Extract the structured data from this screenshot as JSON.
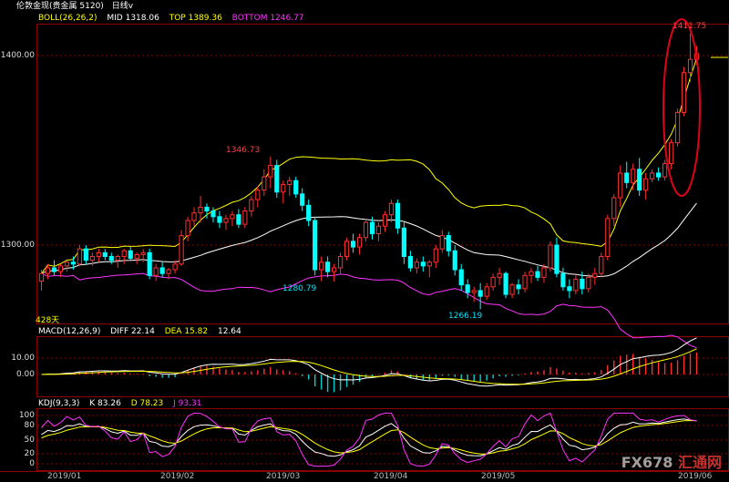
{
  "header": {
    "instrument": "伦敦金现",
    "market": "(贵金属 5120)",
    "period": "日线",
    "period_arrow": "v"
  },
  "boll": {
    "label": "BOLL(26,26,2)",
    "mid": "MID 1318.06",
    "top": "TOP 1389.36",
    "bottom": "BOTTOM 1246.77",
    "colors": {
      "label": "#ffff00",
      "mid": "#ffffff",
      "top": "#ffff00",
      "bottom": "#ff33ff"
    }
  },
  "macd": {
    "label": "MACD(12,26,9)",
    "diff": "DIFF 22.14",
    "dea": "DEA 15.82",
    "value": "12.64",
    "ticks": [
      "10.00",
      "0.00"
    ]
  },
  "kdj": {
    "label": "KDJ(9,3,3)",
    "k": "K 83.26",
    "d": "D 78.23",
    "j": "J 93.31",
    "ticks": [
      "100",
      "80",
      "50",
      "20",
      "0"
    ]
  },
  "price_axis": {
    "ticks": [
      "1400.00",
      "1300.00"
    ]
  },
  "annotations": {
    "max_recent": "1411.75",
    "feb_high": "1346.73",
    "mar_low": "1280.79",
    "apr_low": "1266.19",
    "days": "428天"
  },
  "x_axis": [
    "2019/01",
    "2019/02",
    "2019/03",
    "2019/04",
    "2019/05",
    "2019/06"
  ],
  "watermark": {
    "brand": "FX678",
    "brand_cn": "汇通网"
  },
  "chart_data": {
    "type": "candlestick",
    "up_color": "#ff3030",
    "down_color": "#00ffff",
    "ohlc": [
      [
        1281,
        1287,
        1276,
        1285
      ],
      [
        1285,
        1290,
        1282,
        1288
      ],
      [
        1288,
        1292,
        1284,
        1286
      ],
      [
        1286,
        1290,
        1283,
        1289
      ],
      [
        1289,
        1292,
        1286,
        1291
      ],
      [
        1291,
        1294,
        1287,
        1290
      ],
      [
        1290,
        1300,
        1289,
        1298
      ],
      [
        1298,
        1300,
        1290,
        1292
      ],
      [
        1292,
        1296,
        1289,
        1294
      ],
      [
        1294,
        1298,
        1291,
        1296
      ],
      [
        1296,
        1298,
        1292,
        1294
      ],
      [
        1294,
        1296,
        1290,
        1292
      ],
      [
        1292,
        1295,
        1288,
        1294
      ],
      [
        1294,
        1298,
        1290,
        1297
      ],
      [
        1297,
        1299,
        1292,
        1293
      ],
      [
        1293,
        1296,
        1290,
        1295
      ],
      [
        1295,
        1298,
        1291,
        1296
      ],
      [
        1296,
        1298,
        1282,
        1284
      ],
      [
        1284,
        1290,
        1281,
        1288
      ],
      [
        1288,
        1291,
        1283,
        1285
      ],
      [
        1285,
        1288,
        1282,
        1287
      ],
      [
        1287,
        1292,
        1285,
        1290
      ],
      [
        1290,
        1308,
        1289,
        1305
      ],
      [
        1305,
        1315,
        1302,
        1313
      ],
      [
        1313,
        1320,
        1310,
        1317
      ],
      [
        1317,
        1326,
        1312,
        1320
      ],
      [
        1320,
        1322,
        1314,
        1318
      ],
      [
        1318,
        1320,
        1312,
        1315
      ],
      [
        1315,
        1318,
        1309,
        1312
      ],
      [
        1312,
        1316,
        1308,
        1314
      ],
      [
        1314,
        1318,
        1310,
        1316
      ],
      [
        1316,
        1319,
        1309,
        1311
      ],
      [
        1311,
        1320,
        1309,
        1318
      ],
      [
        1318,
        1326,
        1315,
        1324
      ],
      [
        1324,
        1331,
        1320,
        1329
      ],
      [
        1329,
        1340,
        1326,
        1336
      ],
      [
        1336,
        1346.7,
        1330,
        1342
      ],
      [
        1342,
        1345,
        1325,
        1328
      ],
      [
        1328,
        1334,
        1322,
        1332
      ],
      [
        1332,
        1336,
        1326,
        1334
      ],
      [
        1334,
        1336,
        1325,
        1327
      ],
      [
        1327,
        1330,
        1318,
        1321
      ],
      [
        1321,
        1324,
        1310,
        1313
      ],
      [
        1313,
        1315,
        1284,
        1287
      ],
      [
        1287,
        1294,
        1281,
        1291
      ],
      [
        1291,
        1294,
        1283,
        1286
      ],
      [
        1286,
        1290,
        1280.8,
        1288
      ],
      [
        1288,
        1296,
        1285,
        1294
      ],
      [
        1294,
        1304,
        1292,
        1302
      ],
      [
        1302,
        1306,
        1296,
        1299
      ],
      [
        1299,
        1306,
        1295,
        1304
      ],
      [
        1304,
        1314,
        1302,
        1312
      ],
      [
        1312,
        1315,
        1303,
        1306
      ],
      [
        1306,
        1312,
        1302,
        1310
      ],
      [
        1310,
        1318,
        1307,
        1316
      ],
      [
        1316,
        1324,
        1312,
        1322
      ],
      [
        1322,
        1324,
        1306,
        1309
      ],
      [
        1309,
        1312,
        1290,
        1294
      ],
      [
        1294,
        1297,
        1286,
        1288
      ],
      [
        1288,
        1293,
        1285,
        1291
      ],
      [
        1291,
        1294,
        1286,
        1289
      ],
      [
        1289,
        1292,
        1283,
        1291
      ],
      [
        1291,
        1300,
        1288,
        1298
      ],
      [
        1298,
        1308,
        1296,
        1305
      ],
      [
        1305,
        1307,
        1294,
        1297
      ],
      [
        1297,
        1300,
        1284,
        1287
      ],
      [
        1287,
        1290,
        1276,
        1279
      ],
      [
        1279,
        1282,
        1272,
        1275
      ],
      [
        1275,
        1278,
        1270,
        1276
      ],
      [
        1276,
        1280,
        1266.2,
        1273
      ],
      [
        1273,
        1280,
        1271,
        1278
      ],
      [
        1278,
        1285,
        1276,
        1283
      ],
      [
        1283,
        1288,
        1279,
        1285
      ],
      [
        1285,
        1286,
        1272,
        1274
      ],
      [
        1274,
        1280,
        1272,
        1279
      ],
      [
        1279,
        1282,
        1274,
        1277
      ],
      [
        1277,
        1286,
        1275,
        1284
      ],
      [
        1284,
        1288,
        1280,
        1286
      ],
      [
        1286,
        1289,
        1281,
        1283
      ],
      [
        1283,
        1290,
        1280,
        1288
      ],
      [
        1288,
        1302,
        1286,
        1300
      ],
      [
        1300,
        1304,
        1283,
        1285
      ],
      [
        1285,
        1288,
        1276,
        1278
      ],
      [
        1278,
        1282,
        1272,
        1276
      ],
      [
        1276,
        1284,
        1274,
        1282
      ],
      [
        1282,
        1286,
        1274,
        1277
      ],
      [
        1277,
        1285,
        1275,
        1283
      ],
      [
        1283,
        1288,
        1279,
        1285
      ],
      [
        1285,
        1296,
        1283,
        1294
      ],
      [
        1294,
        1316,
        1292,
        1314
      ],
      [
        1314,
        1327,
        1310,
        1325
      ],
      [
        1325,
        1342,
        1320,
        1338
      ],
      [
        1338,
        1344,
        1330,
        1333
      ],
      [
        1333,
        1343,
        1329,
        1340
      ],
      [
        1340,
        1346,
        1326,
        1329
      ],
      [
        1329,
        1338,
        1324,
        1335
      ],
      [
        1335,
        1340,
        1333,
        1338
      ],
      [
        1338,
        1341,
        1334,
        1336
      ],
      [
        1336,
        1345,
        1334,
        1343
      ],
      [
        1343,
        1356,
        1340,
        1354
      ],
      [
        1354,
        1372,
        1352,
        1370
      ],
      [
        1370,
        1394,
        1368,
        1391
      ],
      [
        1391,
        1411.75,
        1386,
        1398
      ],
      [
        1398,
        1405,
        1395,
        1401
      ]
    ]
  }
}
